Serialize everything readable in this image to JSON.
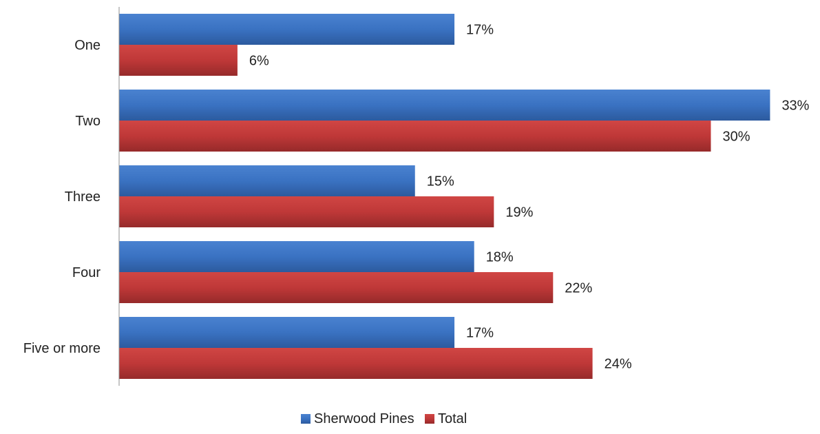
{
  "chart_data": {
    "type": "bar",
    "orientation": "horizontal",
    "categories": [
      "One",
      "Two",
      "Three",
      "Four",
      "Five or more"
    ],
    "series": [
      {
        "name": "Sherwood Pines",
        "values": [
          17,
          33,
          15,
          18,
          17
        ],
        "labels": [
          "17%",
          "33%",
          "15%",
          "18%",
          "17%"
        ],
        "color": "#3b74c4"
      },
      {
        "name": "Total",
        "values": [
          6,
          30,
          19,
          22,
          24
        ],
        "labels": [
          "6%",
          "30%",
          "19%",
          "22%",
          "24%"
        ],
        "color": "#c0393b"
      }
    ],
    "unit": "%",
    "xlim": [
      0,
      35
    ],
    "grid": false,
    "legend_position": "bottom"
  }
}
